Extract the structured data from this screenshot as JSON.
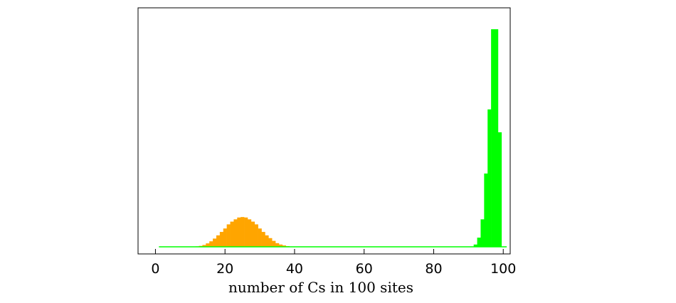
{
  "chart_data": {
    "type": "bar",
    "title": "",
    "xlabel": "number of Cs in 100 sites",
    "ylabel": "",
    "xlim": [
      -5,
      102
    ],
    "ylim": [
      0,
      1
    ],
    "xticks": [
      0,
      20,
      40,
      60,
      80,
      100
    ],
    "yticks": [],
    "grid": false,
    "legend": "none",
    "series": [
      {
        "color": "#ffa500",
        "x": [
          12,
          13,
          14,
          15,
          16,
          17,
          18,
          19,
          20,
          21,
          22,
          23,
          24,
          25,
          26,
          27,
          28,
          29,
          30,
          31,
          32,
          33,
          34,
          35,
          36,
          37,
          38,
          39,
          40
        ],
        "values": [
          0.002,
          0.004,
          0.008,
          0.015,
          0.024,
          0.036,
          0.05,
          0.065,
          0.08,
          0.098,
          0.11,
          0.12,
          0.128,
          0.13,
          0.128,
          0.12,
          0.11,
          0.098,
          0.08,
          0.065,
          0.05,
          0.038,
          0.026,
          0.016,
          0.01,
          0.006,
          0.003,
          0.0015,
          0.0005
        ]
      },
      {
        "color": "#00ff00",
        "x": [
          92,
          93,
          94,
          95,
          96,
          97,
          98,
          99
        ],
        "values": [
          0.01,
          0.04,
          0.12,
          0.32,
          0.6,
          0.95,
          0.95,
          0.5
        ],
        "baseline_xlim": [
          1,
          101
        ]
      }
    ]
  }
}
